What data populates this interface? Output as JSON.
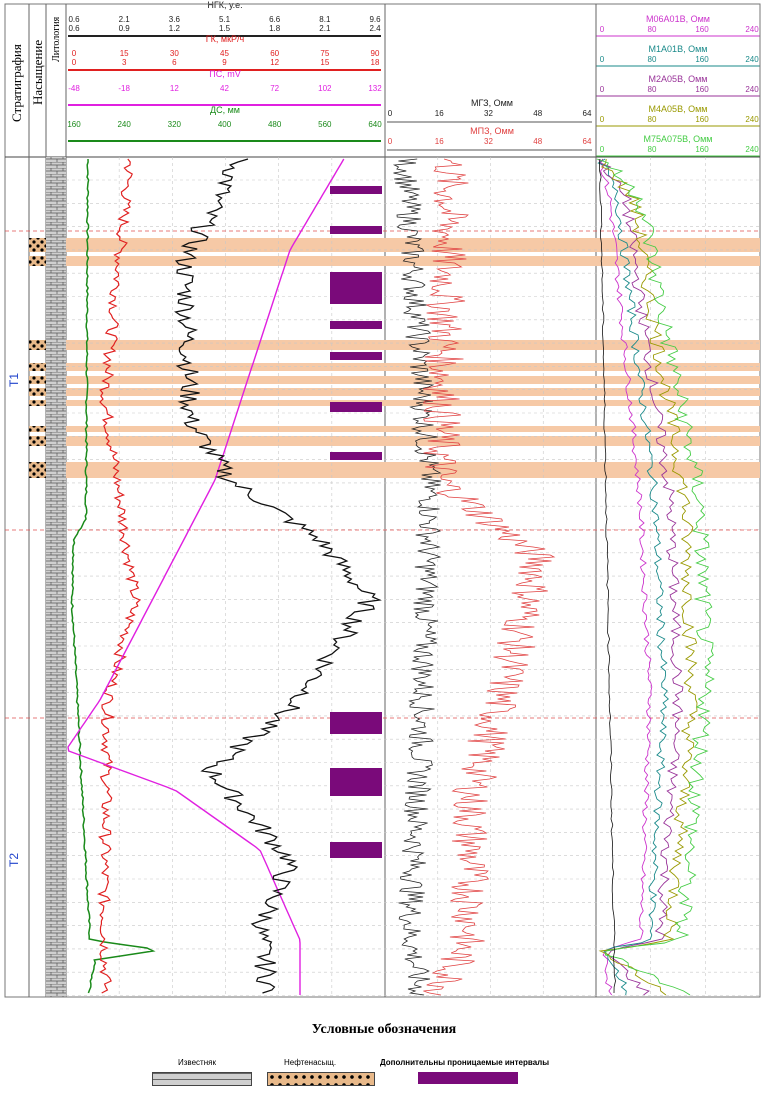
{
  "chart_data": {
    "type": "line",
    "columns": {
      "stratigraphy": "Стратиграфия",
      "saturation": "Насыщение",
      "lithology": "Литология"
    },
    "zones": [
      "T1",
      "T2"
    ],
    "track1_curves": [
      {
        "name": "НГК, у.е.",
        "color": "#222222",
        "scale1": [
          "0.6",
          "2.1",
          "3.6",
          "5.1",
          "6.6",
          "8.1",
          "9.6"
        ],
        "scale2": [
          "0.6",
          "0.9",
          "1.2",
          "1.5",
          "1.8",
          "2.1",
          "2.4"
        ]
      },
      {
        "name": "ГК, мкР/ч",
        "color": "#e02020",
        "scale1": [
          "0",
          "15",
          "30",
          "45",
          "60",
          "75",
          "90"
        ],
        "scale2": [
          "0",
          "3",
          "6",
          "9",
          "12",
          "15",
          "18"
        ]
      },
      {
        "name": "ПС, mV",
        "color": "#e020e0",
        "scale1": [
          "-48",
          "-18",
          "12",
          "42",
          "72",
          "102",
          "132"
        ]
      },
      {
        "name": "ДС, мм",
        "color": "#1a8a1a",
        "scale1": [
          "160",
          "240",
          "320",
          "400",
          "480",
          "560",
          "640"
        ]
      }
    ],
    "track2_curves": [
      {
        "name": "МГЗ, Омм",
        "color": "#222222",
        "scale": [
          "0",
          "16",
          "32",
          "48",
          "64"
        ]
      },
      {
        "name": "МПЗ, Омм",
        "color": "#e04040",
        "scale": [
          "0",
          "16",
          "32",
          "48",
          "64"
        ]
      }
    ],
    "track3_curves": [
      {
        "name": "M06A01B, Омм",
        "color": "#cc33cc",
        "scale": [
          "0",
          "80",
          "160",
          "240"
        ]
      },
      {
        "name": "M1A01B, Омм",
        "color": "#1a8a8a",
        "scale": [
          "0",
          "80",
          "160",
          "240"
        ]
      },
      {
        "name": "M2A05B, Омм",
        "color": "#993399",
        "scale": [
          "0",
          "80",
          "160",
          "240"
        ]
      },
      {
        "name": "M4A05B, Омм",
        "color": "#999900",
        "scale": [
          "0",
          "80",
          "160",
          "240"
        ]
      },
      {
        "name": "M75A075B, Омм",
        "color": "#44cc44",
        "scale": [
          "0",
          "80",
          "160",
          "240"
        ]
      }
    ],
    "grid": true
  },
  "legend": {
    "title": "Условные обозначения",
    "items": [
      "Известняк",
      "Нефтенасыщ.",
      "Дополнительны проницаемые интервалы"
    ]
  },
  "colors": {
    "oil_band": "#f6c9a6",
    "perm_interval": "#7a0a7a",
    "boundary": "#e05050"
  }
}
